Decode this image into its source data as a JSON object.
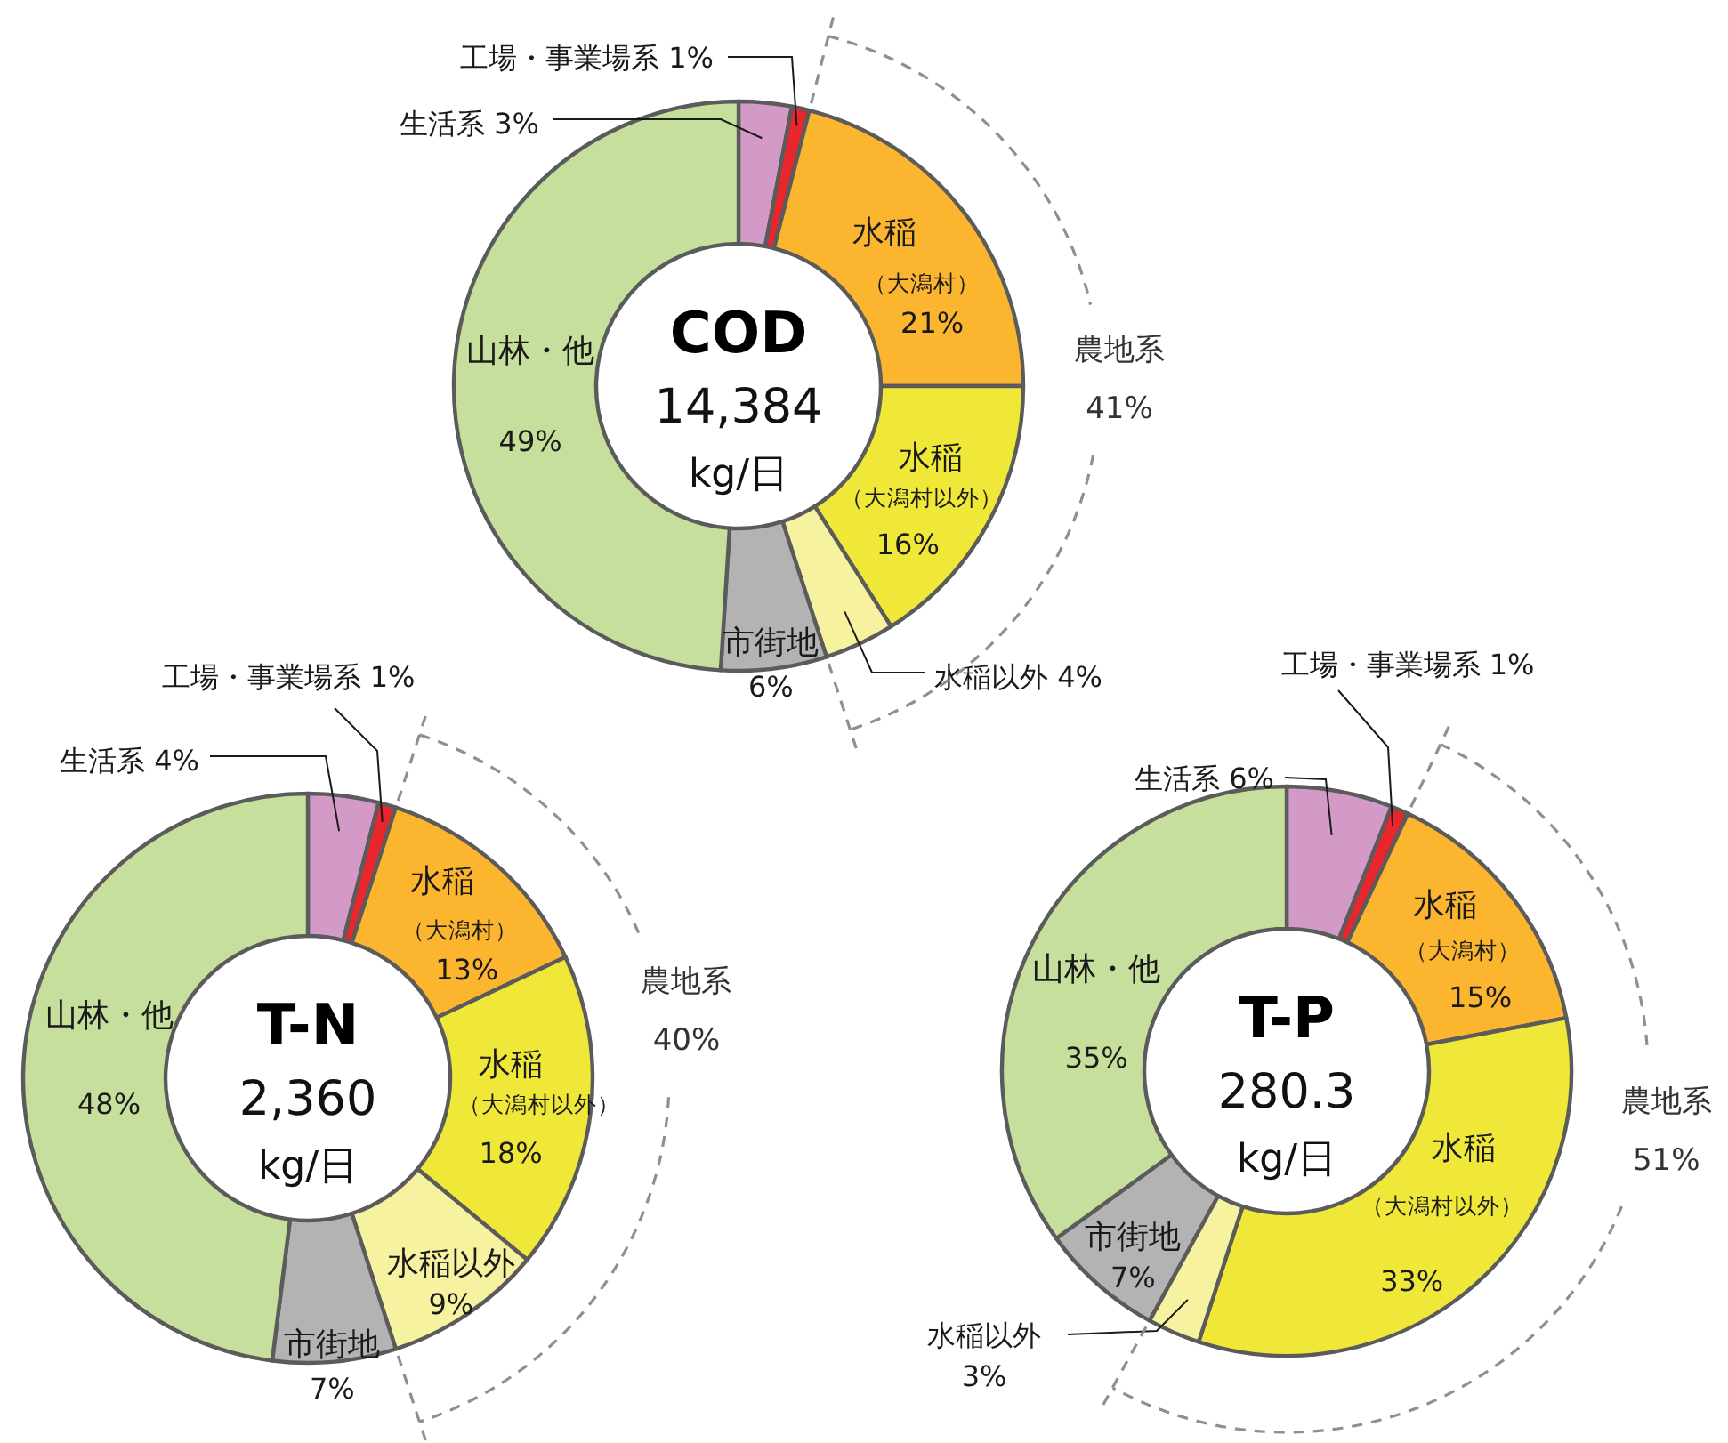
{
  "chart_data": [
    {
      "type": "donut",
      "title": "COD",
      "subtitle": "14,384 kg/日",
      "categories": [
        "生活系",
        "工場・事業場系",
        "水稲（大潟村）",
        "水稲（大潟村以外）",
        "水稲以外",
        "市街地",
        "山林・他"
      ],
      "values": [
        3,
        1,
        21,
        16,
        4,
        6,
        49
      ],
      "value_labels": [
        "3%",
        "1%",
        "21%",
        "16%",
        "4%",
        "6%",
        "49%"
      ],
      "colors": [
        "#d49ac7",
        "#e8262b",
        "#fbb52e",
        "#f0e838",
        "#f6f29f",
        "#b3b3b3",
        "#c6df9c"
      ],
      "annotations": [
        "農地系 41%"
      ]
    },
    {
      "type": "donut",
      "title": "T-N",
      "subtitle": "2,360 kg/日",
      "categories": [
        "生活系",
        "工場・事業場系",
        "水稲（大潟村）",
        "水稲（大潟村以外）",
        "水稲以外",
        "市街地",
        "山林・他"
      ],
      "values": [
        4,
        1,
        13,
        18,
        9,
        7,
        48
      ],
      "value_labels": [
        "4%",
        "1%",
        "13%",
        "18%",
        "9%",
        "7%",
        "48%"
      ],
      "colors": [
        "#d49ac7",
        "#e8262b",
        "#fbb52e",
        "#f0e838",
        "#f6f29f",
        "#b3b3b3",
        "#c6df9c"
      ],
      "annotations": [
        "農地系 40%"
      ]
    },
    {
      "type": "donut",
      "title": "T-P",
      "subtitle": "280.3 kg/日",
      "categories": [
        "生活系",
        "工場・事業場系",
        "水稲（大潟村）",
        "水稲（大潟村以外）",
        "水稲以外",
        "市街地",
        "山林・他"
      ],
      "values": [
        6,
        1,
        15,
        33,
        3,
        7,
        35
      ],
      "value_labels": [
        "6%",
        "1%",
        "15%",
        "33%",
        "3%",
        "7%",
        "35%"
      ],
      "colors": [
        "#d49ac7",
        "#e8262b",
        "#fbb52e",
        "#f0e838",
        "#f6f29f",
        "#b3b3b3",
        "#c6df9c"
      ],
      "annotations": [
        "農地系 51%"
      ]
    }
  ]
}
